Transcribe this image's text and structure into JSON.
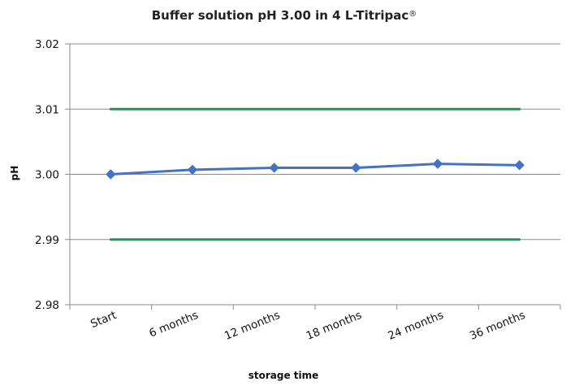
{
  "chart_data": {
    "type": "line",
    "title": "Buffer solution pH 3.00 in 4 L-Titripac",
    "title_suffix": "®",
    "xlabel": "storage time",
    "ylabel": "pH",
    "categories": [
      "Start",
      "6 months",
      "12 months",
      "18 months",
      "24 months",
      "36 months"
    ],
    "ylim": [
      2.98,
      3.02
    ],
    "yticks": [
      "3.02",
      "3.01",
      "3.00",
      "2.99",
      "2.98"
    ],
    "grid": true,
    "legend": "none",
    "series": [
      {
        "values": [
          3.0,
          3.0007,
          3.001,
          3.001,
          3.0016,
          3.0014
        ],
        "color": "#4472C4",
        "marker": "diamond"
      },
      {
        "values": [
          3.01,
          3.01,
          3.01,
          3.01,
          3.01,
          3.01
        ],
        "color": "#1E9550",
        "marker": "none"
      },
      {
        "values": [
          2.99,
          2.99,
          2.99,
          2.99,
          2.99,
          2.99
        ],
        "color": "#1E9550",
        "marker": "none"
      }
    ]
  }
}
